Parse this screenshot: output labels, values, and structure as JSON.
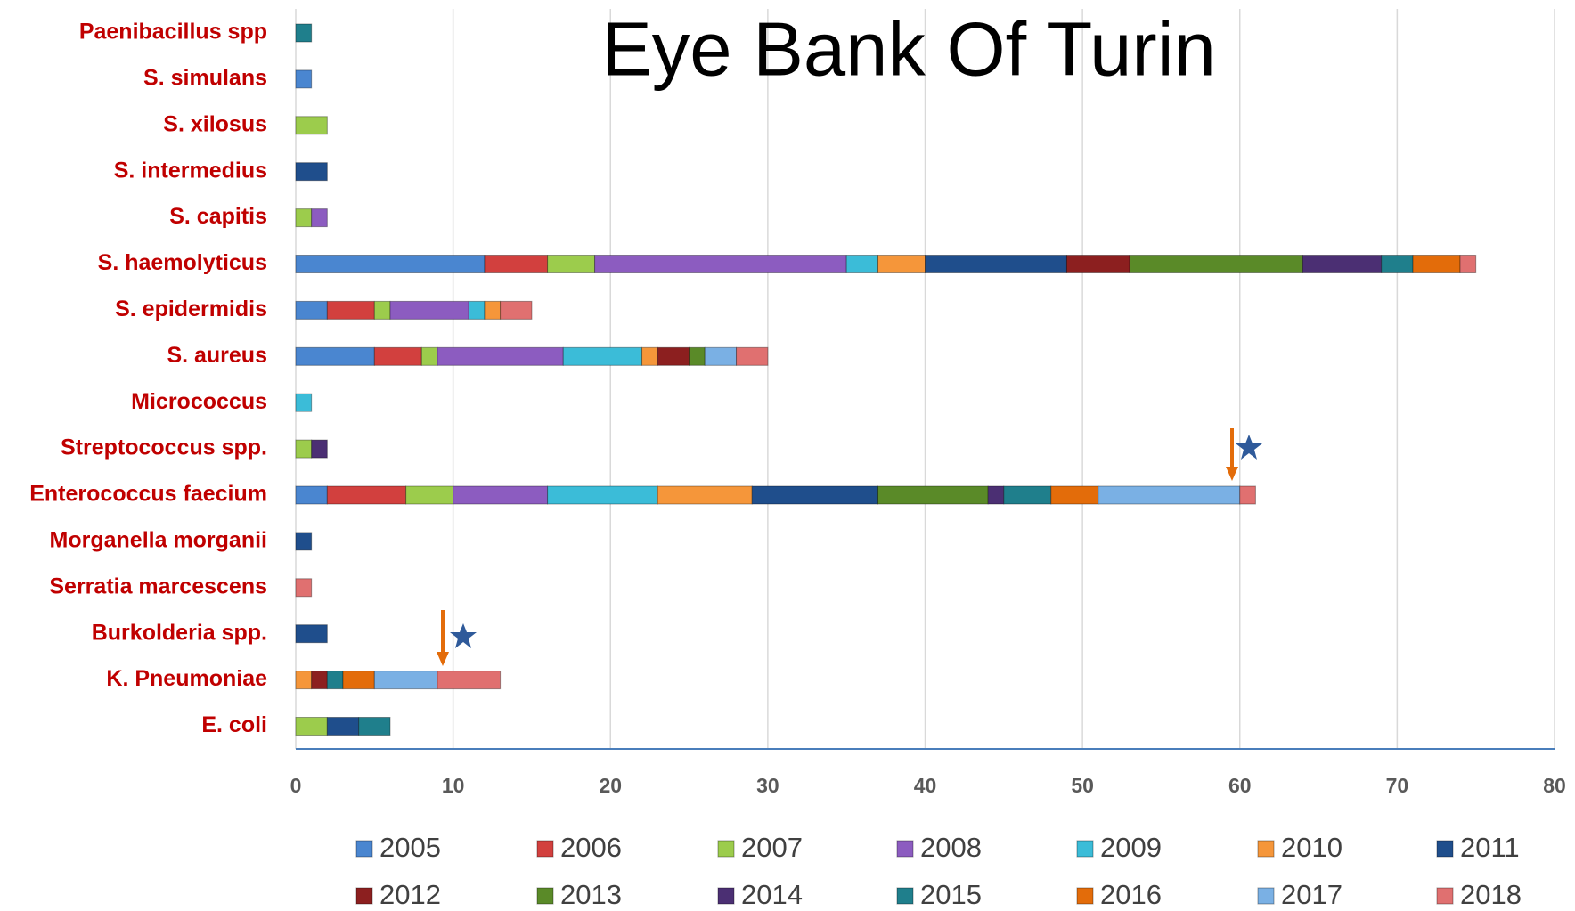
{
  "chart_data": {
    "type": "stacked-bar-horizontal",
    "title": "Eye Bank Of Turin",
    "categories": [
      "Paenibacillus spp",
      "S. simulans",
      "S. xilosus",
      "S. intermedius",
      "S. capitis",
      "S. haemolyticus",
      "S. epidermidis",
      "S. aureus",
      "Micrococcus",
      "Streptococcus spp.",
      "Enterococcus faecium",
      "Morganella morganii",
      "Serratia marcescens",
      "Burkolderia spp.",
      "K. Pneumoniae",
      "E. coli"
    ],
    "series": [
      {
        "name": "2005",
        "color": "#4a86d0",
        "values": [
          0,
          1,
          0,
          0,
          0,
          12,
          2,
          5,
          0,
          0,
          2,
          0,
          0,
          0,
          0,
          0
        ]
      },
      {
        "name": "2006",
        "color": "#d2403e",
        "values": [
          0,
          0,
          0,
          0,
          0,
          4,
          3,
          3,
          0,
          0,
          5,
          0,
          0,
          0,
          0,
          0
        ]
      },
      {
        "name": "2007",
        "color": "#9ccc4c",
        "values": [
          0,
          0,
          2,
          0,
          1,
          3,
          1,
          1,
          0,
          1,
          3,
          0,
          0,
          0,
          0,
          2
        ]
      },
      {
        "name": "2008",
        "color": "#8c5cc0",
        "values": [
          0,
          0,
          0,
          0,
          1,
          16,
          5,
          8,
          0,
          0,
          6,
          0,
          0,
          0,
          0,
          0
        ]
      },
      {
        "name": "2009",
        "color": "#3bbcd8",
        "values": [
          0,
          0,
          0,
          0,
          0,
          2,
          1,
          5,
          1,
          0,
          7,
          0,
          0,
          0,
          0,
          0
        ]
      },
      {
        "name": "2010",
        "color": "#f5963a",
        "values": [
          0,
          0,
          0,
          0,
          0,
          3,
          1,
          1,
          0,
          0,
          6,
          0,
          0,
          0,
          1,
          0
        ]
      },
      {
        "name": "2011",
        "color": "#1f4e8c",
        "values": [
          0,
          0,
          0,
          2,
          0,
          9,
          0,
          0,
          0,
          0,
          8,
          1,
          0,
          2,
          0,
          2
        ]
      },
      {
        "name": "2012",
        "color": "#8c1f1f",
        "values": [
          0,
          0,
          0,
          0,
          0,
          4,
          0,
          2,
          0,
          0,
          0,
          0,
          0,
          0,
          1,
          0
        ]
      },
      {
        "name": "2013",
        "color": "#5a8a28",
        "values": [
          0,
          0,
          0,
          0,
          0,
          11,
          0,
          1,
          0,
          0,
          7,
          0,
          0,
          0,
          0,
          0
        ]
      },
      {
        "name": "2014",
        "color": "#4b2f73",
        "values": [
          0,
          0,
          0,
          0,
          0,
          5,
          0,
          0,
          0,
          1,
          1,
          0,
          0,
          0,
          0,
          0
        ]
      },
      {
        "name": "2015",
        "color": "#1f7f8c",
        "values": [
          1,
          0,
          0,
          0,
          0,
          2,
          0,
          0,
          0,
          0,
          3,
          0,
          0,
          0,
          1,
          2
        ]
      },
      {
        "name": "2016",
        "color": "#e36c0a",
        "values": [
          0,
          0,
          0,
          0,
          0,
          3,
          0,
          0,
          0,
          0,
          3,
          0,
          0,
          0,
          2,
          0
        ]
      },
      {
        "name": "2017",
        "color": "#7ab0e4",
        "values": [
          0,
          0,
          0,
          0,
          0,
          0,
          0,
          2,
          0,
          0,
          9,
          0,
          0,
          0,
          4,
          0
        ]
      },
      {
        "name": "2018",
        "color": "#e07070",
        "values": [
          0,
          0,
          0,
          0,
          0,
          1,
          2,
          2,
          0,
          0,
          1,
          0,
          1,
          0,
          4,
          0
        ]
      }
    ],
    "xlim": [
      0,
      80
    ],
    "xticks": [
      0,
      10,
      20,
      30,
      40,
      50,
      60,
      70,
      80
    ],
    "grid": true
  }
}
